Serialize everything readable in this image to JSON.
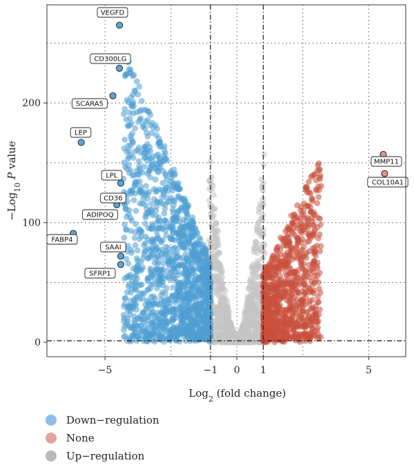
{
  "chart_data": {
    "type": "scatter",
    "title": "",
    "xlabel": "Log2 (fold change)",
    "ylabel": "-Log10 P value",
    "xlim": [
      -7.2,
      6.4
    ],
    "ylim": [
      -12,
      282
    ],
    "x_ticks": [
      -5,
      -1,
      0,
      1,
      5
    ],
    "x_tick_labels": [
      "−5",
      "−1",
      "0",
      "1",
      "5"
    ],
    "y_ticks": [
      0,
      100,
      200
    ],
    "y_tick_labels": [
      "0",
      "100",
      "200"
    ],
    "vlines": [
      -1,
      1
    ],
    "hline": 1.3,
    "dotted_grid_x": [
      -2.5,
      2.5
    ],
    "dotted_grid_y": [
      50,
      150,
      250
    ],
    "colors": {
      "down": "#4f9fd4",
      "none": "#c8c8c8",
      "up": "#c8503c",
      "highlight_down": "#5aa6dc",
      "highlight_up": "#e8908a"
    },
    "series": [
      {
        "name": "Down−regulation",
        "color": "#8ec0e6"
      },
      {
        "name": "None",
        "color": "#e2a49a"
      },
      {
        "name": "Up−regulation",
        "color": "#b9b9b9"
      }
    ],
    "labeled_genes": [
      {
        "label": "VEGFD",
        "x": -4.45,
        "y": 265,
        "group": "down"
      },
      {
        "label": "CD300LG",
        "x": -4.45,
        "y": 229,
        "group": "down"
      },
      {
        "label": "SCARA5",
        "x": -4.7,
        "y": 206,
        "group": "down"
      },
      {
        "label": "LEP",
        "x": -5.9,
        "y": 167,
        "group": "down"
      },
      {
        "label": "LPL",
        "x": -4.4,
        "y": 133,
        "group": "down"
      },
      {
        "label": "CD36",
        "x": -4.55,
        "y": 115,
        "group": "down"
      },
      {
        "label": "ADIPOQ",
        "x": -5.2,
        "y": 107,
        "group": "down"
      },
      {
        "label": "FABP4",
        "x": -6.2,
        "y": 91,
        "group": "down"
      },
      {
        "label": "SAAI",
        "x": -4.4,
        "y": 72,
        "group": "down"
      },
      {
        "label": "SFRP1",
        "x": -4.4,
        "y": 65,
        "group": "down"
      },
      {
        "label": "MMP11",
        "x": 5.55,
        "y": 157,
        "group": "up"
      },
      {
        "label": "COL10A1",
        "x": 5.6,
        "y": 141,
        "group": "up"
      }
    ]
  },
  "legend": {
    "items": [
      {
        "label": "Down−regulation",
        "color": "#8ec0e6"
      },
      {
        "label": "None",
        "color": "#e2a49a"
      },
      {
        "label": "Up−regulation",
        "color": "#b9b9b9"
      }
    ]
  }
}
